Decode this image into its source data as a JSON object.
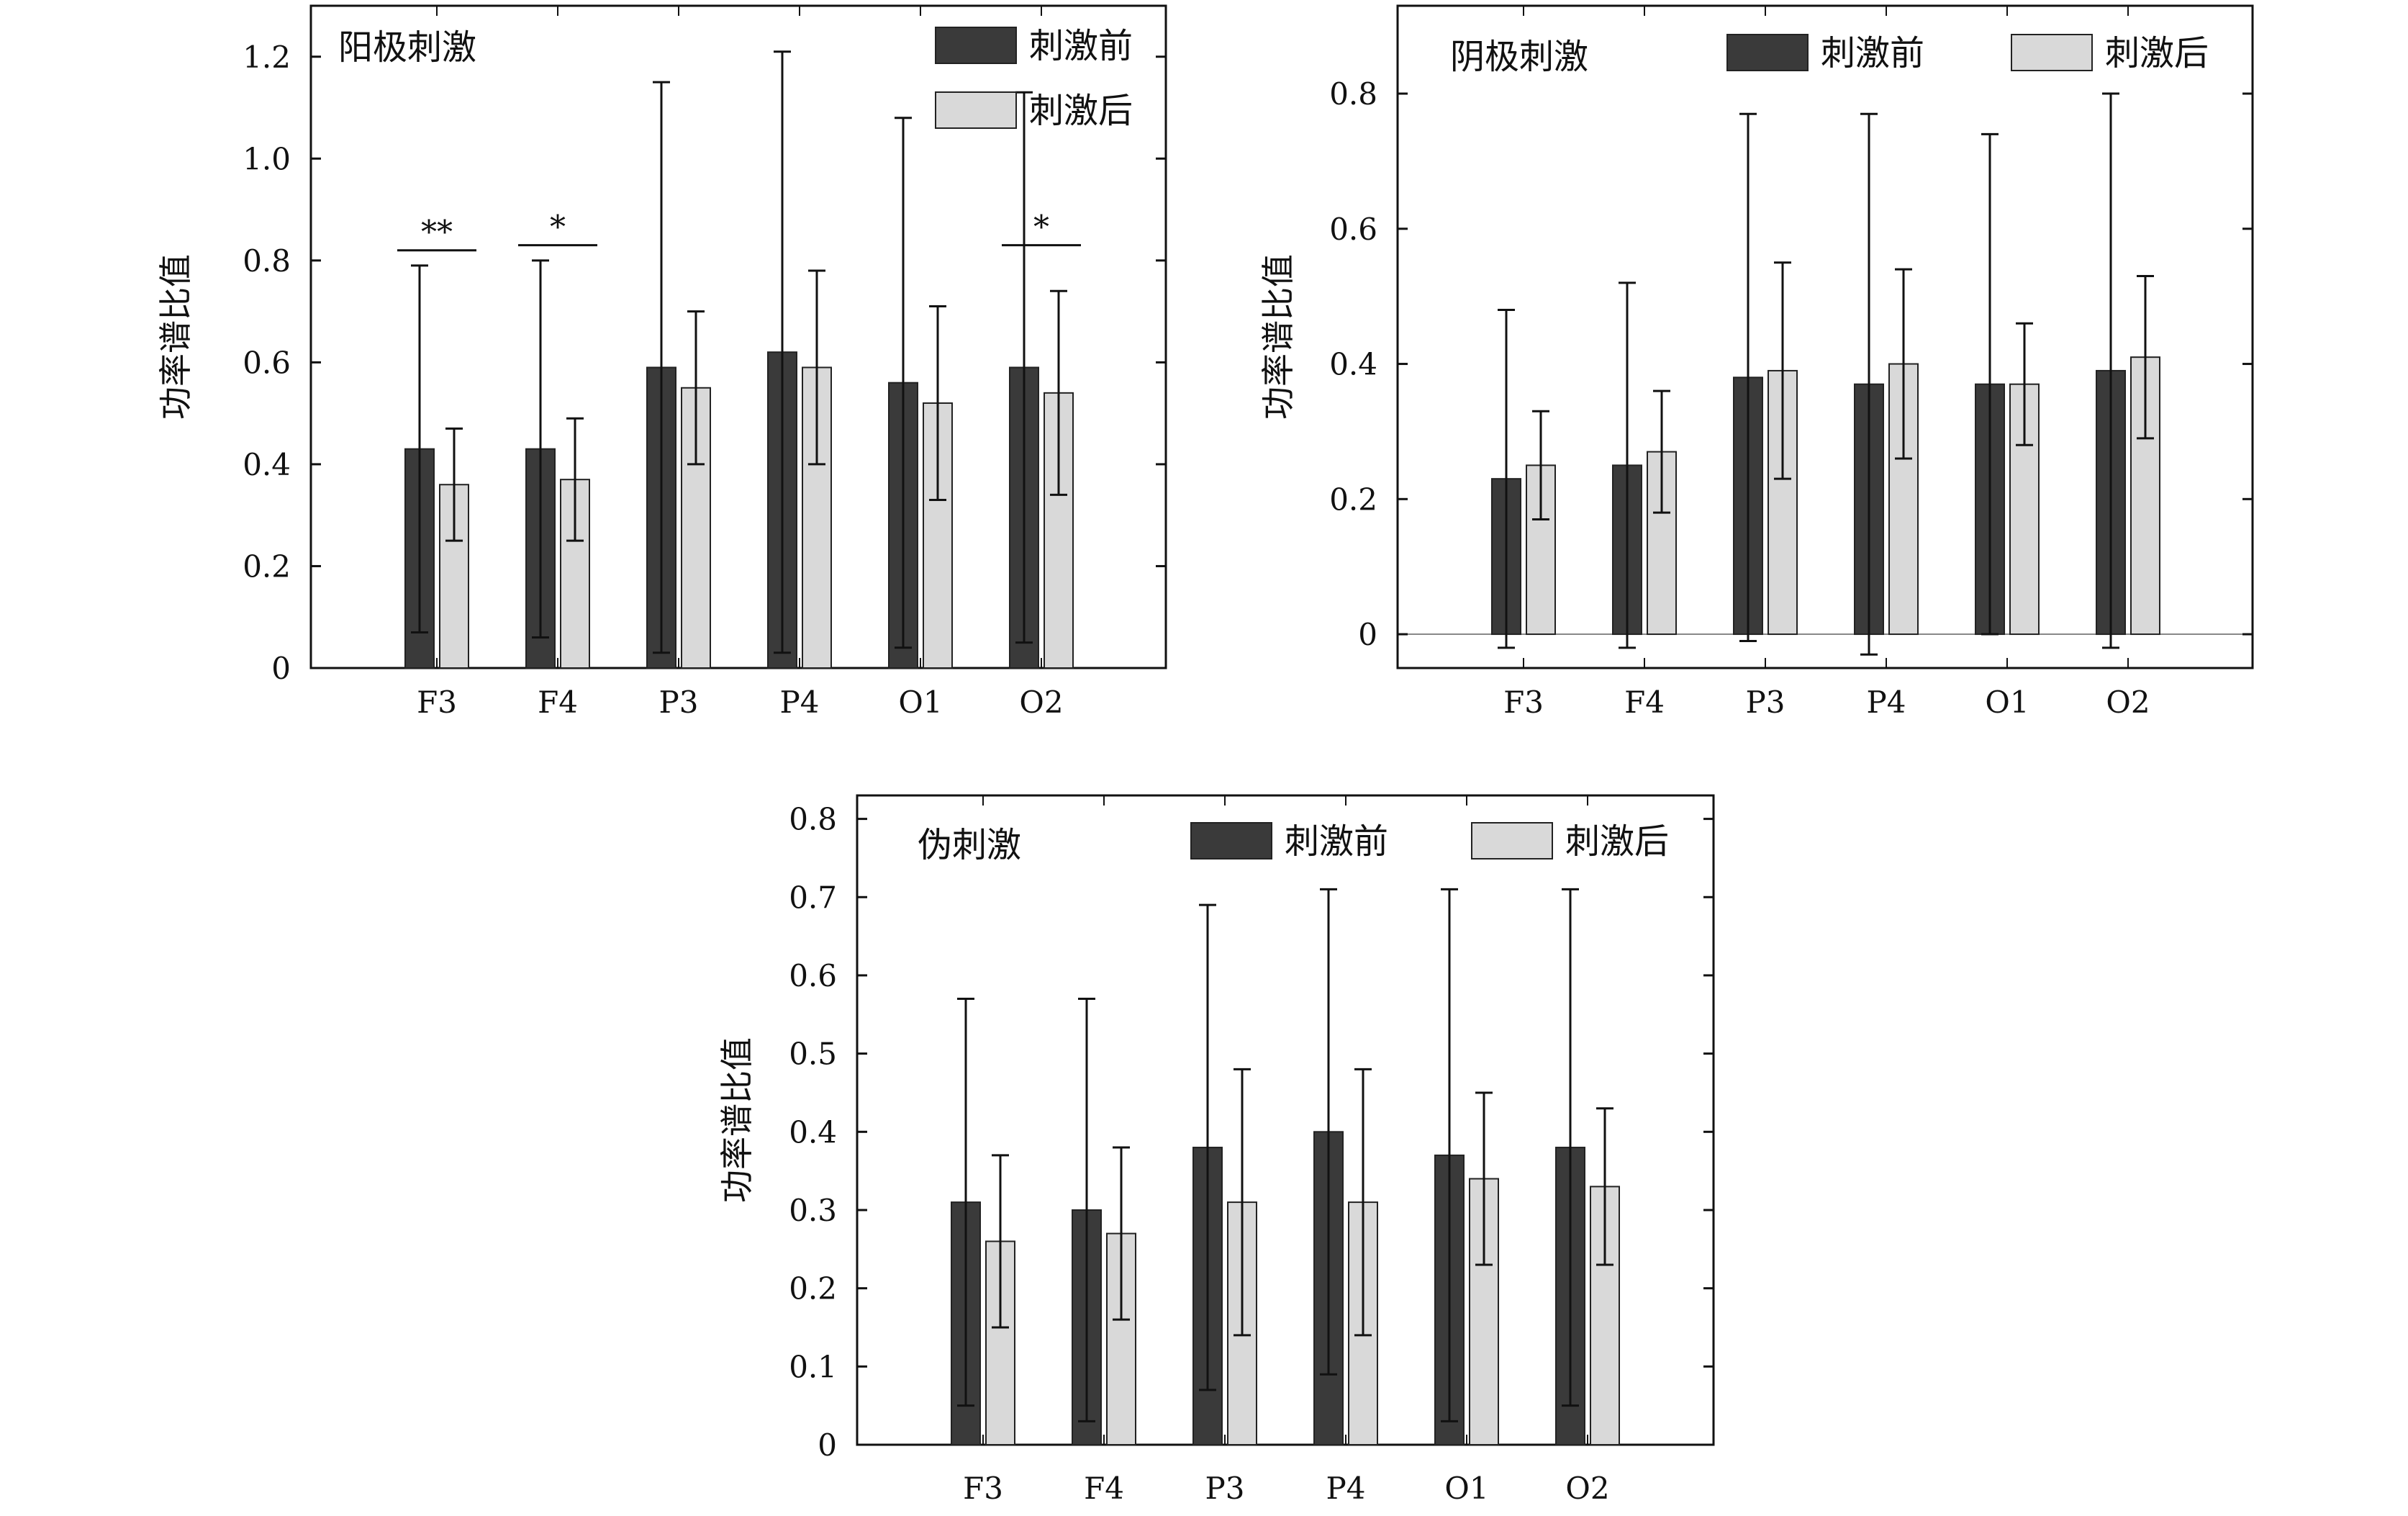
{
  "chart_data": [
    {
      "type": "bar",
      "title": "阳极刺激",
      "xlabel": "",
      "ylabel": "功率谱比值",
      "categories": [
        "F3",
        "F4",
        "P3",
        "P4",
        "O1",
        "O2"
      ],
      "series": [
        {
          "name": "刺激前",
          "values": [
            0.43,
            0.43,
            0.59,
            0.62,
            0.56,
            0.59
          ],
          "errors": [
            0.36,
            0.37,
            0.56,
            0.59,
            0.52,
            0.54
          ]
        },
        {
          "name": "刺激后",
          "values": [
            0.36,
            0.37,
            0.55,
            0.59,
            0.52,
            0.54
          ],
          "errors": [
            0.11,
            0.12,
            0.15,
            0.19,
            0.19,
            0.2
          ]
        }
      ],
      "ylim": [
        0,
        1.3
      ],
      "yticks": [
        0,
        0.2,
        0.4,
        0.6,
        0.8,
        1.0,
        1.2
      ],
      "ytick_labels": [
        "0",
        "0.2",
        "0.4",
        "0.6",
        "0.8",
        "1.0",
        "1.2"
      ],
      "significance": [
        {
          "category": "F3",
          "label": "**",
          "y": 0.82
        },
        {
          "category": "F4",
          "label": "*",
          "y": 0.83
        },
        {
          "category": "O2",
          "label": "*",
          "y": 0.83
        }
      ],
      "legend_position": "top-right",
      "grid": false,
      "colors": {
        "before": "#3a3a3a",
        "after": "#d9d9d9",
        "axis": "#111111"
      }
    },
    {
      "type": "bar",
      "title": "阴极刺激",
      "xlabel": "",
      "ylabel": "功率谱比值",
      "categories": [
        "F3",
        "F4",
        "P3",
        "P4",
        "O1",
        "O2"
      ],
      "series": [
        {
          "name": "刺激前",
          "values": [
            0.23,
            0.25,
            0.38,
            0.37,
            0.37,
            0.39
          ],
          "errors": [
            0.25,
            0.27,
            0.39,
            0.4,
            0.37,
            0.41
          ]
        },
        {
          "name": "刺激后",
          "values": [
            0.25,
            0.27,
            0.39,
            0.4,
            0.37,
            0.41
          ],
          "errors": [
            0.08,
            0.09,
            0.16,
            0.14,
            0.09,
            0.12
          ]
        }
      ],
      "ylim": [
        -0.05,
        0.93
      ],
      "yticks": [
        0,
        0.2,
        0.4,
        0.6,
        0.8
      ],
      "ytick_labels": [
        "0",
        "0.2",
        "0.4",
        "0.6",
        "0.8"
      ],
      "zero_line": true,
      "legend_position": "top",
      "grid": false,
      "colors": {
        "before": "#3a3a3a",
        "after": "#d9d9d9",
        "axis": "#111111"
      }
    },
    {
      "type": "bar",
      "title": "伪刺激",
      "xlabel": "",
      "ylabel": "功率谱比值",
      "categories": [
        "F3",
        "F4",
        "P3",
        "P4",
        "O1",
        "O2"
      ],
      "series": [
        {
          "name": "刺激前",
          "values": [
            0.31,
            0.3,
            0.38,
            0.4,
            0.37,
            0.38
          ],
          "errors": [
            0.26,
            0.27,
            0.31,
            0.31,
            0.34,
            0.33
          ]
        },
        {
          "name": "刺激后",
          "values": [
            0.26,
            0.27,
            0.31,
            0.31,
            0.34,
            0.33
          ],
          "errors": [
            0.11,
            0.11,
            0.17,
            0.17,
            0.11,
            0.1
          ]
        }
      ],
      "ylim": [
        0,
        0.83
      ],
      "yticks": [
        0,
        0.1,
        0.2,
        0.3,
        0.4,
        0.5,
        0.6,
        0.7,
        0.8
      ],
      "ytick_labels": [
        "0",
        "0.1",
        "0.2",
        "0.3",
        "0.4",
        "0.5",
        "0.6",
        "0.7",
        "0.8"
      ],
      "legend_position": "top-right",
      "grid": false,
      "colors": {
        "before": "#3a3a3a",
        "after": "#d9d9d9",
        "axis": "#111111"
      }
    }
  ]
}
